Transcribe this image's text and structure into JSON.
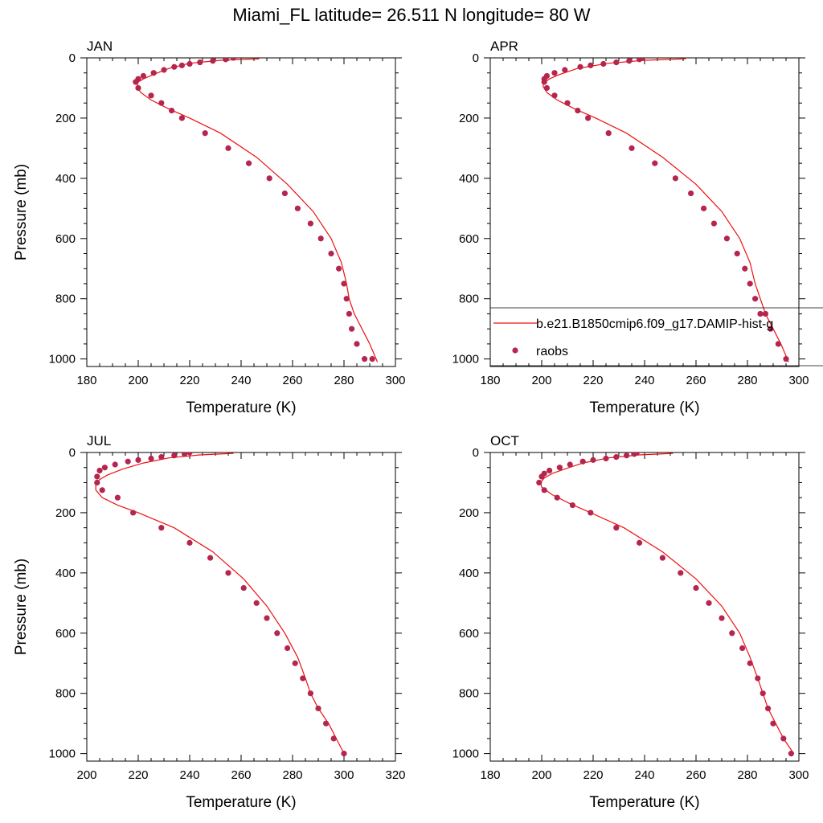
{
  "figure": {
    "title": "Miami_FL  latitude= 26.511 N longitude= 80 W"
  },
  "legend": {
    "model_label": "b.e21.B1850cmip6.f09_g17.DAMIP-hist-g",
    "obs_label": "raobs",
    "placement": "right-lower-of-APR-panel"
  },
  "colors": {
    "model_line": "#ee1010",
    "obs_marker": "#b5264e"
  },
  "chart_data": [
    {
      "type": "line",
      "panel": "JAN",
      "title": "JAN",
      "xlabel": "Temperature (K)",
      "ylabel": "Pressure (mb)",
      "xlim": [
        180,
        300
      ],
      "ylim": [
        0,
        1025
      ],
      "y_inverted": true,
      "xticks": [
        180,
        200,
        220,
        240,
        260,
        280,
        300
      ],
      "yticks": [
        0,
        200,
        400,
        600,
        800,
        1000
      ],
      "series": [
        {
          "name": "b.e21.B1850cmip6.f09_g17.DAMIP-hist-g",
          "style": "line",
          "x": [
            247,
            232,
            220,
            212,
            206,
            202,
            200,
            199.5,
            201,
            205,
            212,
            220,
            232,
            246,
            258,
            268,
            275,
            279,
            281,
            282,
            284,
            287,
            290,
            293
          ],
          "y": [
            3,
            8,
            18,
            35,
            55,
            70,
            80,
            95,
            115,
            140,
            170,
            200,
            250,
            330,
            420,
            510,
            600,
            680,
            750,
            800,
            850,
            900,
            950,
            1010
          ]
        },
        {
          "name": "raobs",
          "style": "scatter",
          "x": [
            237,
            234,
            229,
            224,
            220,
            217,
            214,
            210,
            206,
            202,
            200,
            199,
            200,
            205,
            209,
            213,
            217,
            226,
            235,
            243,
            251,
            257,
            262,
            267,
            271,
            275,
            278,
            280,
            281,
            282,
            283,
            285,
            288,
            291
          ],
          "y": [
            0,
            5,
            10,
            15,
            20,
            25,
            30,
            40,
            50,
            60,
            70,
            80,
            100,
            125,
            150,
            175,
            200,
            250,
            300,
            350,
            400,
            450,
            500,
            550,
            600,
            650,
            700,
            750,
            800,
            850,
            900,
            950,
            1000,
            1000
          ]
        }
      ]
    },
    {
      "type": "line",
      "panel": "APR",
      "title": "APR",
      "xlabel": "Temperature (K)",
      "ylabel": "",
      "xlim": [
        180,
        300
      ],
      "ylim": [
        0,
        1025
      ],
      "y_inverted": true,
      "xticks": [
        180,
        200,
        220,
        240,
        260,
        280,
        300
      ],
      "yticks": [
        0,
        200,
        400,
        600,
        800,
        1000
      ],
      "series": [
        {
          "name": "b.e21.B1850cmip6.f09_g17.DAMIP-hist-g",
          "style": "line",
          "x": [
            256,
            240,
            226,
            214,
            207,
            203,
            201,
            200.5,
            202,
            206,
            213,
            221,
            233,
            247,
            260,
            270,
            277,
            281,
            283,
            285,
            287,
            290,
            293,
            296
          ],
          "y": [
            3,
            8,
            18,
            35,
            55,
            70,
            82,
            95,
            115,
            140,
            170,
            200,
            250,
            330,
            420,
            510,
            600,
            680,
            750,
            800,
            850,
            900,
            950,
            1010
          ]
        },
        {
          "name": "raobs",
          "style": "scatter",
          "x": [
            239,
            238,
            234,
            229,
            224,
            219,
            215,
            209,
            205,
            202,
            201,
            201,
            202,
            205,
            210,
            214,
            218,
            226,
            235,
            244,
            252,
            258,
            263,
            267,
            272,
            276,
            279,
            281,
            283,
            285,
            287,
            289,
            292,
            295
          ],
          "y": [
            0,
            5,
            10,
            15,
            20,
            25,
            30,
            40,
            50,
            60,
            70,
            80,
            100,
            125,
            150,
            175,
            200,
            250,
            300,
            350,
            400,
            450,
            500,
            550,
            600,
            650,
            700,
            750,
            800,
            850,
            850,
            900,
            950,
            1000
          ]
        }
      ]
    },
    {
      "type": "line",
      "panel": "JUL",
      "title": "JUL",
      "xlabel": "Temperature (K)",
      "ylabel": "Pressure (mb)",
      "xlim": [
        200,
        320
      ],
      "ylim": [
        0,
        1025
      ],
      "y_inverted": true,
      "xticks": [
        200,
        220,
        240,
        260,
        280,
        300,
        320
      ],
      "yticks": [
        0,
        200,
        400,
        600,
        800,
        1000
      ],
      "series": [
        {
          "name": "b.e21.B1850cmip6.f09_g17.DAMIP-hist-g",
          "style": "line",
          "x": [
            257,
            244,
            232,
            222,
            214,
            208,
            205,
            203.5,
            203.5,
            206,
            212,
            220,
            234,
            249,
            261,
            270,
            277,
            282,
            285,
            287,
            290,
            294,
            297,
            300
          ],
          "y": [
            3,
            8,
            18,
            35,
            55,
            75,
            90,
            105,
            125,
            150,
            175,
            200,
            250,
            330,
            420,
            510,
            600,
            680,
            750,
            800,
            850,
            900,
            950,
            1000
          ]
        },
        {
          "name": "raobs",
          "style": "scatter",
          "x": [
            240,
            238,
            234,
            229,
            225,
            220,
            216,
            211,
            207,
            205,
            204,
            204,
            206,
            212,
            218,
            229,
            240,
            248,
            255,
            261,
            266,
            270,
            274,
            278,
            281,
            284,
            287,
            290,
            293,
            296,
            300
          ],
          "y": [
            0,
            5,
            10,
            15,
            20,
            25,
            30,
            40,
            50,
            60,
            80,
            100,
            125,
            150,
            200,
            250,
            300,
            350,
            400,
            450,
            500,
            550,
            600,
            650,
            700,
            750,
            800,
            850,
            900,
            950,
            1000
          ]
        }
      ]
    },
    {
      "type": "line",
      "panel": "OCT",
      "title": "OCT",
      "xlabel": "Temperature (K)",
      "ylabel": "",
      "xlim": [
        180,
        300
      ],
      "ylim": [
        0,
        1025
      ],
      "y_inverted": true,
      "xticks": [
        180,
        200,
        220,
        240,
        260,
        280,
        300
      ],
      "yticks": [
        0,
        200,
        400,
        600,
        800,
        1000
      ],
      "series": [
        {
          "name": "b.e21.B1850cmip6.f09_g17.DAMIP-hist-g",
          "style": "line",
          "x": [
            251,
            238,
            226,
            216,
            209,
            204,
            201,
            199.5,
            200,
            204,
            211,
            219,
            232,
            247,
            260,
            270,
            277,
            281,
            284,
            286,
            288,
            291,
            294,
            298
          ],
          "y": [
            3,
            8,
            18,
            35,
            55,
            70,
            85,
            100,
            115,
            140,
            170,
            200,
            250,
            330,
            420,
            510,
            600,
            680,
            750,
            800,
            850,
            900,
            950,
            1000
          ]
        },
        {
          "name": "raobs",
          "style": "scatter",
          "x": [
            237,
            236,
            233,
            229,
            225,
            220,
            216,
            211,
            207,
            203,
            201,
            200,
            199,
            201,
            206,
            212,
            219,
            229,
            238,
            247,
            254,
            260,
            265,
            270,
            274,
            278,
            281,
            284,
            286,
            288,
            290,
            294,
            297
          ],
          "y": [
            0,
            5,
            10,
            15,
            20,
            25,
            30,
            40,
            50,
            60,
            70,
            80,
            100,
            125,
            150,
            175,
            200,
            250,
            300,
            350,
            400,
            450,
            500,
            550,
            600,
            650,
            700,
            750,
            800,
            850,
            900,
            950,
            1000
          ]
        }
      ]
    }
  ]
}
